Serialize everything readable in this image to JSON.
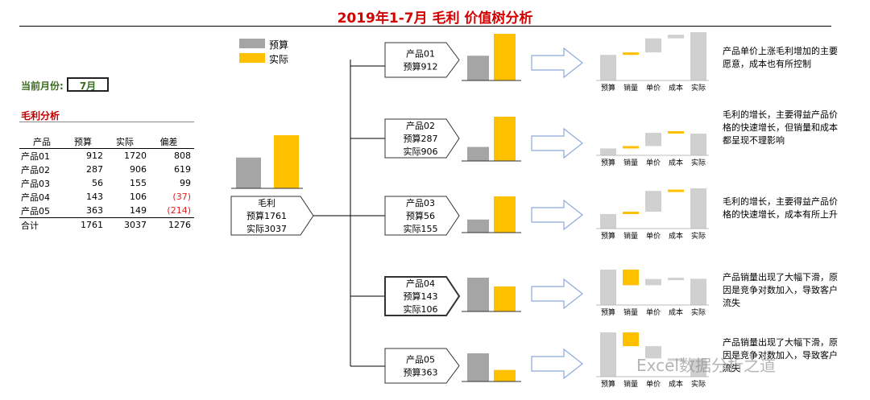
{
  "title": "2019年1-7月 毛利 价值树分析",
  "current_month": {
    "label": "当前月份:",
    "value": "7月"
  },
  "section_title": "毛利分析",
  "legend": [
    {
      "name": "预算",
      "color": "#a5a5a5"
    },
    {
      "name": "实际",
      "color": "#ffc000"
    }
  ],
  "colors": {
    "budget": "#a5a5a5",
    "actual": "#ffc000",
    "waterfall": "#d0d0d0",
    "arrow": "#8ea9db"
  },
  "table": {
    "headers": [
      "产品",
      "预算",
      "实际",
      "偏差"
    ],
    "rows": [
      {
        "name": "产品01",
        "budget": "912",
        "actual": "1720",
        "diff": "808",
        "neg": false
      },
      {
        "name": "产品02",
        "budget": "287",
        "actual": "906",
        "diff": "619",
        "neg": false
      },
      {
        "name": "产品03",
        "budget": "56",
        "actual": "155",
        "diff": "99",
        "neg": false
      },
      {
        "name": "产品04",
        "budget": "143",
        "actual": "106",
        "diff": "(37)",
        "neg": true
      },
      {
        "name": "产品05",
        "budget": "363",
        "actual": "149",
        "diff": "(214)",
        "neg": true
      }
    ],
    "total": {
      "name": "合计",
      "budget": "1761",
      "actual": "3037",
      "diff": "1276"
    }
  },
  "root": {
    "l1": "毛利",
    "l2": "预算1761",
    "l3": "实际3037"
  },
  "chart_data": {
    "type": "bar",
    "root_chart": {
      "categories": [
        "预算",
        "实际"
      ],
      "values": [
        1761,
        3037
      ]
    },
    "waterfall_categories": [
      "预算",
      "销量",
      "单价",
      "成本",
      "实际"
    ],
    "products": [
      {
        "l1": "产品01",
        "l2": "预算912",
        "l3": "",
        "budget": 912,
        "actual": 1720,
        "waterfall": [
          [
            0,
            912
          ],
          [
            912,
            1000
          ],
          [
            1000,
            1500
          ],
          [
            1500,
            1630
          ],
          [
            0,
            1720
          ]
        ],
        "desc": "产品单价上涨毛利增加的主要愿意，成本也有所控制"
      },
      {
        "l1": "产品02",
        "l2": "预算287",
        "l3": "实际906",
        "budget": 287,
        "actual": 906,
        "waterfall": [
          [
            0,
            287
          ],
          [
            287,
            387
          ],
          [
            387,
            937
          ],
          [
            937,
            1007
          ],
          [
            0,
            906
          ]
        ],
        "desc": "毛利的增长，主要得益产品价格的快速增长，但销量和成本都呈现不理影响"
      },
      {
        "l1": "产品03",
        "l2": "预算56",
        "l3": "实际155",
        "budget": 56,
        "actual": 155,
        "waterfall": [
          [
            0,
            56
          ],
          [
            56,
            65
          ],
          [
            65,
            145
          ],
          [
            145,
            150
          ],
          [
            0,
            155
          ]
        ],
        "desc": "毛利的增长，主要得益产品价格的快速增长，成本有所上升"
      },
      {
        "l1": "产品04",
        "l2": "预算143",
        "l3": "实际106",
        "budget": 143,
        "actual": 106,
        "waterfall": [
          [
            0,
            143
          ],
          [
            143,
            80
          ],
          [
            80,
            105
          ],
          [
            105,
            110
          ],
          [
            0,
            106
          ]
        ],
        "desc": "产品销量出现了大幅下滑，原因是竞争对数加入，导致客户流失"
      },
      {
        "l1": "产品05",
        "l2": "预算363",
        "l3": "",
        "budget": 363,
        "actual": 149,
        "waterfall": [
          [
            0,
            363
          ],
          [
            363,
            250
          ],
          [
            250,
            150
          ],
          [
            150,
            149
          ],
          [
            0,
            149
          ]
        ],
        "desc": "产品销量出现了大幅下滑，原因是竞争对数加入，导致客户流失"
      }
    ]
  },
  "watermark": "Excel数据分析之道"
}
